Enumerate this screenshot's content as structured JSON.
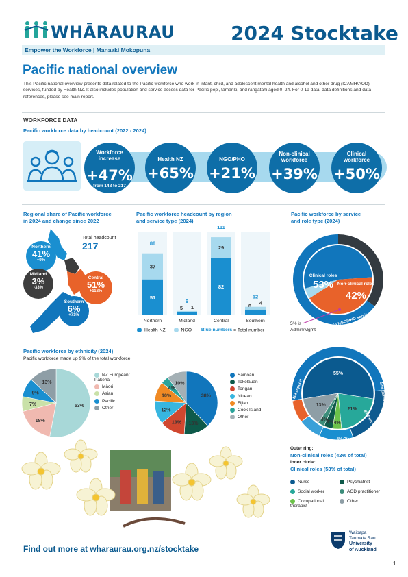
{
  "header": {
    "brand": "WHĀRAURAU",
    "title": "2024 Stocktake",
    "tagline": "Empower the Workforce | Manaaki Mokopuna"
  },
  "page_title": "Pacific national overview",
  "intro": "This Pacific national overview presents data related to the Pacific workforce who work in infant, child, and adolescent mental health and alcohol and other drug (ICAMH/AOD) services, funded by Health NZ. It also includes population and service access data for Pacific pēpi, tamariki, and rangatahi aged 0–24. For 0-19 data, data definitions and data references, please see main report.",
  "section": "WORKFORCE DATA",
  "headcount_title": "Pacific workforce data by headcount (2022 - 2024)",
  "stats": [
    {
      "label": "Workforce increase",
      "value": "+47%",
      "note": "from 148 to 217"
    },
    {
      "label": "Health NZ",
      "value": "+65%",
      "note": ""
    },
    {
      "label": "NGO/PHO",
      "value": "+21%",
      "note": ""
    },
    {
      "label": "Non-clinical workforce",
      "value": "+39%",
      "note": ""
    },
    {
      "label": "Clinical workforce",
      "value": "+50%",
      "note": ""
    }
  ],
  "regional": {
    "title_l1": "Regional share of Pacific workforce",
    "title_l2": "in 2024 and change since 2022",
    "total_label": "Total headcount",
    "total_value": "217",
    "regions": [
      {
        "name": "Northern",
        "pct": "41%",
        "change": "+9%",
        "color": "#1a8fd0"
      },
      {
        "name": "Midland",
        "pct": "3%",
        "change": "-33%",
        "color": "#3d3d3d"
      },
      {
        "name": "Central",
        "pct": "51%",
        "change": "+118%",
        "color": "#e8622a"
      },
      {
        "name": "Southern",
        "pct": "6%",
        "change": "+71%",
        "color": "#1176bc"
      }
    ]
  },
  "bar_chart": {
    "title_l1": "Pacific workforce headcount by region",
    "title_l2": "and service type (2024)",
    "legend": [
      {
        "label": "Health NZ",
        "color": "#1a8fd0"
      },
      {
        "label": "NGO",
        "color": "#a7d9ee"
      }
    ],
    "note_blue": "Blue numbers",
    "note_rest": " = Total number"
  },
  "chart_data": [
    {
      "type": "bar",
      "stacked": true,
      "categories": [
        "Northern",
        "Midland",
        "Central",
        "Southern"
      ],
      "series": [
        {
          "name": "Health NZ",
          "values": [
            51,
            5,
            82,
            8
          ],
          "color": "#1a8fd0"
        },
        {
          "name": "NGO",
          "values": [
            37,
            1,
            29,
            4
          ],
          "color": "#a7d9ee"
        }
      ],
      "totals": [
        88,
        6,
        111,
        12
      ]
    },
    {
      "type": "pie",
      "labels": [
        "NZ European/ Pākehā",
        "Māori",
        "Asian",
        "Pacific",
        "Other"
      ],
      "values": [
        53,
        18,
        7,
        9,
        13
      ],
      "colors": [
        "#a8d8d8",
        "#f0b9b0",
        "#c9e1a8",
        "#1a8fd0",
        "#8e9ea6"
      ]
    },
    {
      "type": "pie",
      "labels": [
        "Samoan",
        "Tokelauan",
        "Tongan",
        "Niuean",
        "Fijian",
        "Cook Island",
        "Other"
      ],
      "values": [
        38,
        13,
        13,
        12,
        10,
        4,
        10
      ],
      "colors": [
        "#1176bc",
        "#0e5a4a",
        "#d0472f",
        "#38b6e0",
        "#f08a24",
        "#2aa39a",
        "#a4b0b5"
      ]
    },
    {
      "type": "pie",
      "labels": [
        "Health NZ services",
        "NGO/PHO services",
        "Admin/Mgmt"
      ],
      "values": [
        65,
        35,
        5
      ],
      "inner_labels": [
        "Clinical roles",
        "Non-clinical roles"
      ],
      "inner_values": [
        53,
        42
      ],
      "colors": [
        "#1176bc",
        "#333a40",
        "#e8622a",
        "#a7d9ee"
      ]
    },
    {
      "type": "pie",
      "title": "Outer ring: Non-clinical roles (42% of total) / Inner circle: Clinical roles (53% of total)",
      "outer_labels": [
        "MH support",
        "Youth worker",
        "Cultural",
        "Peer support",
        "Other"
      ],
      "outer_values": [
        52,
        21,
        12,
        8,
        8
      ],
      "inner_labels": [
        "Nurse",
        "Social worker",
        "Occupational therapist",
        "Psychiatrist",
        "AOD practitioner",
        "Other"
      ],
      "inner_values": [
        55,
        21,
        4,
        4,
        3,
        13
      ],
      "colors": [
        "#0b5a8f",
        "#27a89a",
        "#6cc24a",
        "#0e5a4a",
        "#3b8d7a",
        "#8e9ea6"
      ]
    }
  ],
  "service_role": {
    "title_l1": "Pacific workforce by service",
    "title_l2": "and role type (2024)",
    "outer_health": "65% employed in Health NZ services",
    "outer_ngo": "35% employed in NGO/PHO services",
    "clinical_label": "Clinical roles",
    "clinical_pct": "53%",
    "nonclinical_label": "Non-clinical roles",
    "nonclinical_pct": "42%",
    "admin_note_l1": "5% is",
    "admin_note_l2": "Admin/Mgmt"
  },
  "ethnicity": {
    "title": "Pacific workforce by ethnicity (2024)",
    "subtitle": "Pacific workforce made up 9% of the total workforce",
    "legend_total": [
      "NZ European/ Pākehā",
      "Māori",
      "Asian",
      "Pacific",
      "Other"
    ],
    "legend_pacific": [
      "Samoan",
      "Tokelauan",
      "Tongan",
      "Niuean",
      "Fijian",
      "Cook Island",
      "Other"
    ]
  },
  "roles": {
    "outer_ring_label": "Outer ring:",
    "outer_ring_title": "Non-clinical roles (42% of total)",
    "inner_label": "Inner circle:",
    "inner_title": "Clinical roles (53% of total)",
    "ring_texts": [
      "52% MH support",
      "21% Youth worker",
      "12% Cultural",
      "8% Peer support",
      "8% Other"
    ],
    "legend": [
      {
        "label": "Nurse",
        "color": "#0b5a8f"
      },
      {
        "label": "Psychiatrist",
        "color": "#0e5a4a"
      },
      {
        "label": "Social worker",
        "color": "#27a89a"
      },
      {
        "label": "AOD practitioner",
        "color": "#3b8d7a"
      },
      {
        "label": "Occupational therapist",
        "color": "#6cc24a"
      },
      {
        "label": "Other",
        "color": "#8e9ea6"
      }
    ]
  },
  "footer": {
    "link": "Find out more at wharaurau.org.nz/stocktake",
    "uni_l1": "Waipapa",
    "uni_l2": "Taumata Rau",
    "uni_l3": "University",
    "uni_l4": "of Auckland",
    "page_number": "1"
  }
}
